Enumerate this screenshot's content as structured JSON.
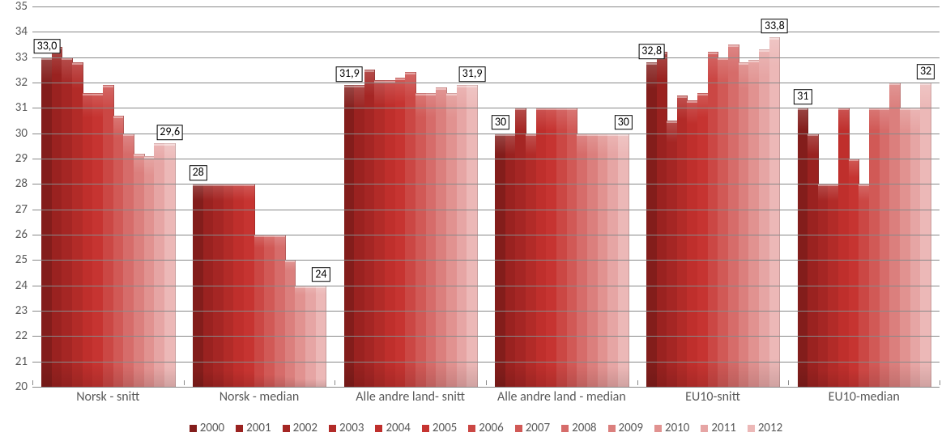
{
  "chart": {
    "type": "bar",
    "background_color": "#ffffff",
    "grid_color": "#898989",
    "text_color": "#595959",
    "label_fontsize": 16,
    "tick_fontsize": 15,
    "legend_fontsize": 15,
    "datalabel_fontsize": 14,
    "ylim": [
      20,
      35
    ],
    "ytick_step": 1,
    "yticks": [
      20,
      21,
      22,
      23,
      24,
      25,
      26,
      27,
      28,
      29,
      30,
      31,
      32,
      33,
      34,
      35
    ],
    "categories": [
      "Norsk - snitt",
      "Norsk - median",
      "Alle andre land- snitt",
      "Alle andre land - median",
      "EU10-snitt",
      "EU10-median"
    ],
    "series": [
      {
        "name": "2000",
        "color": "#831d1b"
      },
      {
        "name": "2001",
        "color": "#9a2220"
      },
      {
        "name": "2002",
        "color": "#a52624"
      },
      {
        "name": "2003",
        "color": "#b22b28"
      },
      {
        "name": "2004",
        "color": "#bf2f2c"
      },
      {
        "name": "2005",
        "color": "#c63431"
      },
      {
        "name": "2006",
        "color": "#cb4744"
      },
      {
        "name": "2007",
        "color": "#d15956"
      },
      {
        "name": "2008",
        "color": "#d66c6a"
      },
      {
        "name": "2009",
        "color": "#db7f7d"
      },
      {
        "name": "2010",
        "color": "#e19290"
      },
      {
        "name": "2011",
        "color": "#e6a5a4"
      },
      {
        "name": "2012",
        "color": "#ecb8b7"
      }
    ],
    "values": [
      [
        33.0,
        33.4,
        33.0,
        32.8,
        31.6,
        31.6,
        31.9,
        30.7,
        30.0,
        29.2,
        29.1,
        29.6,
        29.6
      ],
      [
        28,
        28,
        28,
        28,
        28,
        28,
        26,
        26,
        26,
        25,
        24,
        24,
        24
      ],
      [
        31.9,
        31.9,
        32.5,
        32.1,
        32.1,
        32.2,
        32.4,
        31.6,
        31.6,
        31.8,
        31.6,
        31.9,
        31.9
      ],
      [
        30,
        30,
        31,
        30,
        31,
        31,
        31,
        31,
        30,
        30,
        30,
        30,
        30
      ],
      [
        32.8,
        33.2,
        30.5,
        31.5,
        31.3,
        31.6,
        33.2,
        33.0,
        33.5,
        32.8,
        32.9,
        33.3,
        33.8
      ],
      [
        31,
        30,
        28,
        28,
        31,
        29,
        28,
        31,
        31,
        32,
        31,
        31,
        32
      ]
    ],
    "data_labels": [
      {
        "group": 0,
        "bar": 0,
        "text": "33,0"
      },
      {
        "group": 0,
        "bar": 12,
        "text": "29,6"
      },
      {
        "group": 1,
        "bar": 0,
        "text": "28"
      },
      {
        "group": 1,
        "bar": 12,
        "text": "24"
      },
      {
        "group": 2,
        "bar": 0,
        "text": "31,9"
      },
      {
        "group": 2,
        "bar": 12,
        "text": "31,9"
      },
      {
        "group": 3,
        "bar": 0,
        "text": "30"
      },
      {
        "group": 3,
        "bar": 12,
        "text": "30"
      },
      {
        "group": 4,
        "bar": 0,
        "text": "32,8"
      },
      {
        "group": 4,
        "bar": 12,
        "text": "33,8"
      },
      {
        "group": 5,
        "bar": 0,
        "text": "31"
      },
      {
        "group": 5,
        "bar": 12,
        "text": "32"
      }
    ]
  }
}
